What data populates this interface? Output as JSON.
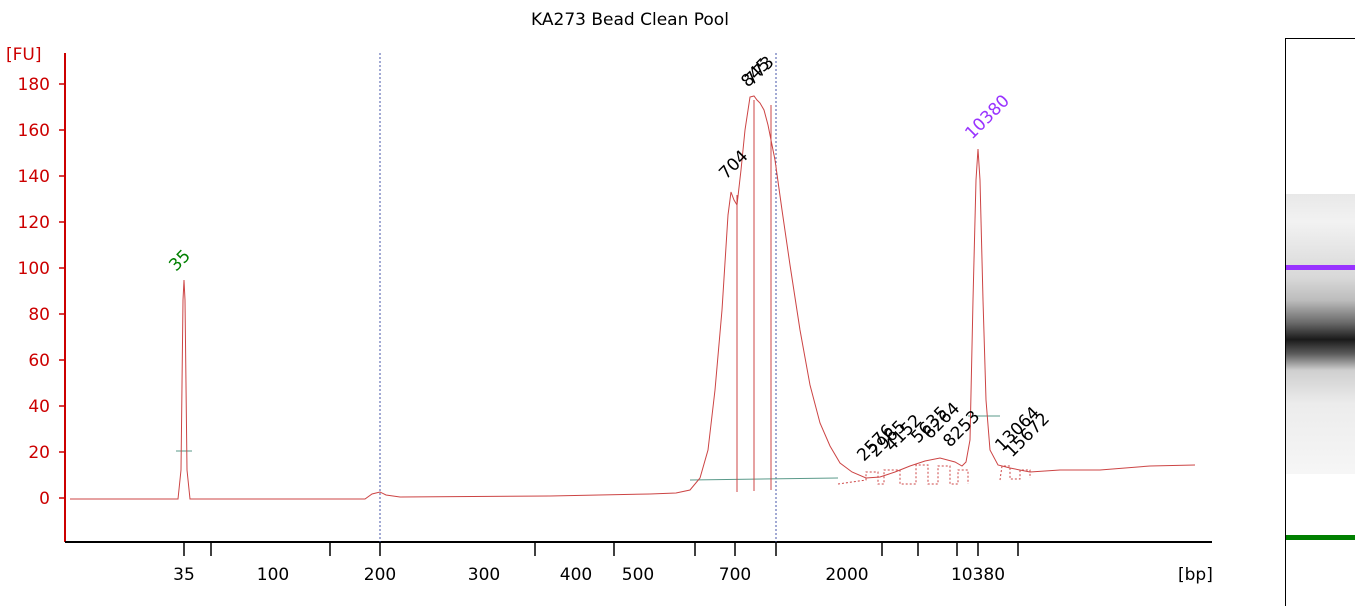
{
  "chart_data": {
    "type": "line",
    "title": "KA273 Bead Clean Pool",
    "ylabel": "[FU]",
    "xlabel": "[bp]",
    "ylim": [
      -18,
      186
    ],
    "yticks": [
      0,
      20,
      40,
      60,
      80,
      100,
      120,
      140,
      160,
      180
    ],
    "xticks": [
      "35",
      "100",
      "200",
      "300",
      "400",
      "500",
      "700",
      "2000",
      "10380"
    ],
    "grid": false,
    "series": [
      {
        "x": [
          "20",
          "35",
          "200",
          "550",
          "604",
          "704",
          "773",
          "845",
          "1200",
          "1700",
          "2576",
          "4152",
          "5635",
          "10380",
          "13064",
          "17000"
        ],
        "values": [
          0,
          95,
          2,
          1,
          8,
          134,
          174,
          173,
          42,
          11,
          12,
          17,
          19,
          152,
          14,
          14
        ]
      }
    ],
    "peak_labels": [
      {
        "text": "35",
        "color": "#008000"
      },
      {
        "text": "704",
        "color": "#000000"
      },
      {
        "text": "845",
        "color": "#000000"
      },
      {
        "text": "773",
        "color": "#000000"
      },
      {
        "text": "10380",
        "color": "#9933ff"
      },
      {
        "text": "2576",
        "color": "#000000"
      },
      {
        "text": "2965",
        "color": "#000000"
      },
      {
        "text": "4152",
        "color": "#000000"
      },
      {
        "text": "5635",
        "color": "#000000"
      },
      {
        "text": "6264",
        "color": "#000000"
      },
      {
        "text": "8253",
        "color": "#000000"
      },
      {
        "text": "13064",
        "color": "#000000"
      },
      {
        "text": "15672",
        "color": "#000000"
      }
    ],
    "colors": {
      "axis": "#cc0000",
      "trace": "#cc4444",
      "marker_upper": "#9933ff",
      "marker_lower": "#008000",
      "baseline": "#5a9a8a"
    }
  }
}
